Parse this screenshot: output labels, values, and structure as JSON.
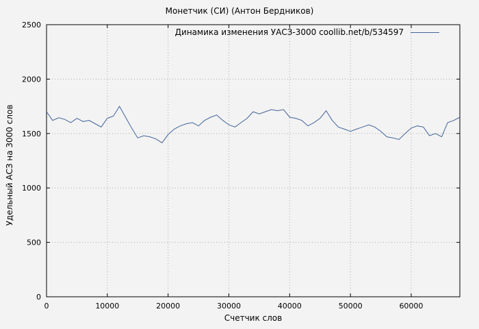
{
  "chart_data": {
    "type": "line",
    "title": "Монетчик (СИ) (Антон Бердников)",
    "legend": "Динамика изменения УАСЗ-3000  coollib.net/b/534597",
    "xlabel": "Счетчик слов",
    "ylabel": "Удельный АСЗ на 3000 слов",
    "xlim": [
      0,
      68000
    ],
    "ylim": [
      0,
      2500
    ],
    "xticks": [
      0,
      10000,
      20000,
      30000,
      40000,
      50000,
      60000
    ],
    "yticks": [
      0,
      500,
      1000,
      1500,
      2000,
      2500
    ],
    "grid": true,
    "legend_position": "top-right-inside",
    "colors": {
      "line": "#41639a",
      "grid": "#aaaaaa",
      "axis": "#000000",
      "background": "#f3f3f3"
    },
    "x": [
      0,
      1000,
      2000,
      3000,
      4000,
      5000,
      6000,
      7000,
      8000,
      9000,
      10000,
      11000,
      12000,
      13000,
      14000,
      15000,
      16000,
      17000,
      18000,
      19000,
      20000,
      21000,
      22000,
      23000,
      24000,
      25000,
      26000,
      27000,
      28000,
      29000,
      30000,
      31000,
      32000,
      33000,
      34000,
      35000,
      36000,
      37000,
      38000,
      39000,
      40000,
      41000,
      42000,
      43000,
      44000,
      45000,
      46000,
      47000,
      48000,
      49000,
      50000,
      51000,
      52000,
      53000,
      54000,
      55000,
      56000,
      57000,
      58000,
      59000,
      60000,
      61000,
      62000,
      63000,
      64000,
      65000,
      66000,
      67000,
      68000
    ],
    "series": [
      {
        "name": "Динамика изменения УАСЗ-3000",
        "values": [
          1700,
          1620,
          1645,
          1630,
          1600,
          1640,
          1610,
          1620,
          1590,
          1560,
          1640,
          1660,
          1750,
          1650,
          1550,
          1460,
          1480,
          1470,
          1450,
          1415,
          1490,
          1540,
          1570,
          1590,
          1600,
          1570,
          1620,
          1650,
          1670,
          1620,
          1580,
          1560,
          1600,
          1640,
          1700,
          1680,
          1700,
          1720,
          1710,
          1720,
          1650,
          1640,
          1620,
          1570,
          1600,
          1640,
          1710,
          1620,
          1560,
          1540,
          1520,
          1540,
          1560,
          1580,
          1560,
          1520,
          1470,
          1460,
          1445,
          1500,
          1550,
          1570,
          1560,
          1480,
          1500,
          1470,
          1600,
          1620,
          1650
        ]
      }
    ]
  }
}
